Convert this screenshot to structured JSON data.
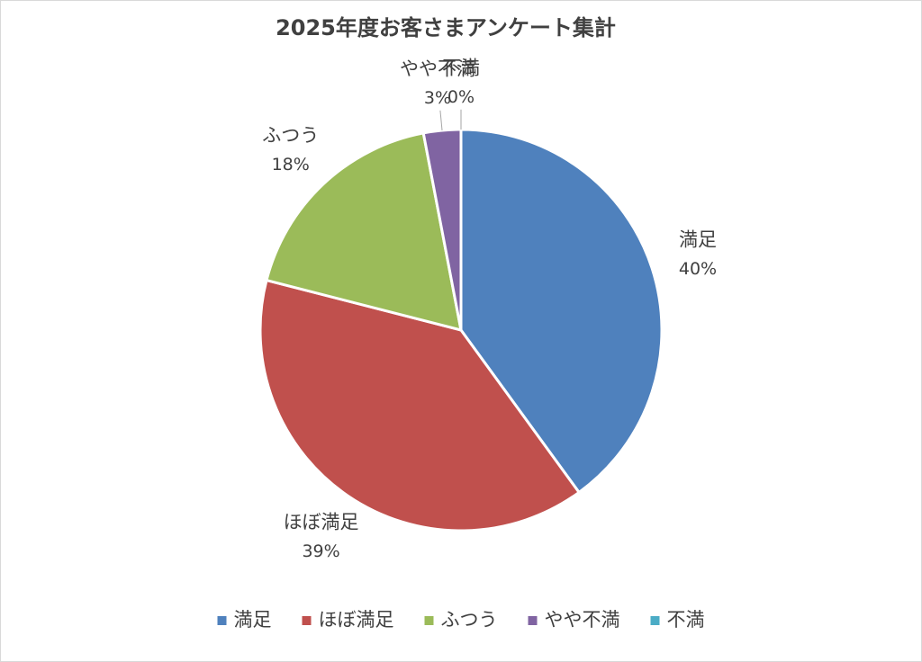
{
  "chart_data": {
    "type": "pie",
    "title": "2025年度お客さまアンケート集計",
    "categories": [
      "満足",
      "ほぼ満足",
      "ふつう",
      "やや不満",
      "不満"
    ],
    "values": [
      40,
      39,
      18,
      3,
      0
    ],
    "value_labels": [
      "40%",
      "39%",
      "18%",
      "3%",
      "0%"
    ],
    "colors": [
      "#4f81bd",
      "#c0504d",
      "#9bbb59",
      "#8064a2",
      "#4bacc6"
    ],
    "legend": "bottom"
  }
}
